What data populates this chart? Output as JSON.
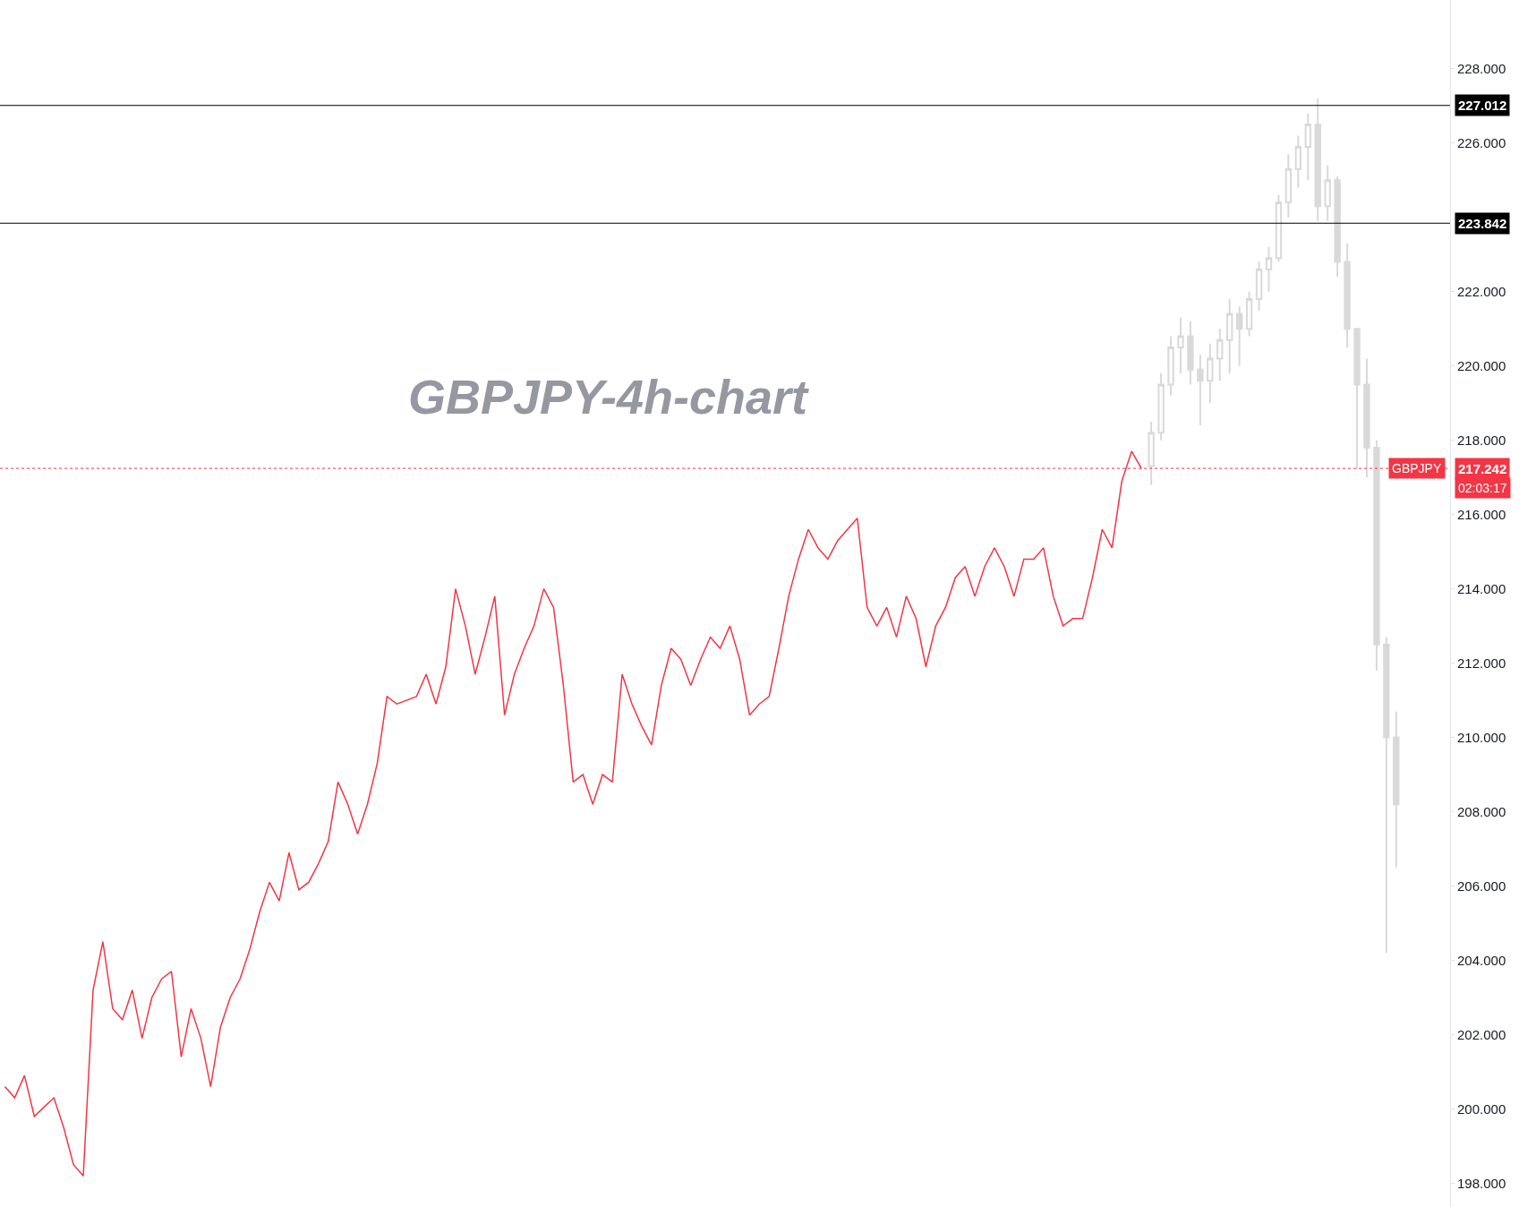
{
  "chart_data": {
    "type": "line",
    "title": "GBPJPY-4h-chart",
    "categories": [
      null,
      null,
      null,
      null,
      null,
      null,
      null,
      null,
      null,
      null,
      null,
      null,
      null,
      null,
      null,
      null,
      null,
      null,
      null,
      null,
      null,
      null,
      null,
      null,
      null,
      null,
      null,
      null,
      null,
      null,
      null,
      null,
      null,
      null,
      null,
      null,
      null,
      null,
      null,
      null,
      null,
      null,
      null,
      null,
      null,
      null,
      null,
      null,
      null,
      null,
      null,
      null,
      null,
      null,
      null,
      null,
      null,
      null,
      null,
      null,
      null,
      null,
      null,
      null,
      null,
      null,
      null,
      null,
      null,
      null,
      null,
      null,
      null,
      null,
      null,
      null,
      null,
      null,
      null,
      null,
      null,
      null,
      null,
      null,
      null,
      null,
      null,
      null,
      null,
      null,
      null,
      null,
      null,
      null,
      null,
      null,
      null,
      null,
      null,
      null,
      null,
      null,
      null,
      null,
      null,
      null,
      null,
      null,
      null,
      null,
      null,
      null,
      null,
      null,
      null,
      null,
      null,
      null,
      null,
      null,
      null,
      null,
      null,
      null,
      null,
      null,
      null,
      null,
      null,
      null,
      null,
      null,
      null,
      null,
      null,
      null,
      null,
      null,
      null,
      null,
      null,
      null,
      null,
      null,
      null,
      null,
      null,
      null
    ],
    "series": [
      {
        "color": "#f23645",
        "values": [
          200.6,
          200.3,
          200.9,
          199.8,
          200.05,
          200.3,
          199.5,
          198.5,
          198.2,
          203.2,
          204.5,
          202.7,
          202.4,
          203.2,
          201.9,
          203.0,
          203.5,
          203.7,
          201.4,
          202.7,
          201.9,
          200.6,
          202.2,
          203.0,
          203.5,
          204.3,
          205.3,
          206.1,
          205.6,
          206.9,
          205.9,
          206.1,
          206.6,
          207.2,
          208.8,
          208.2,
          207.4,
          208.2,
          209.3,
          211.1,
          210.9,
          211.0,
          211.1,
          211.7,
          210.9,
          211.9,
          214.0,
          213.0,
          211.7,
          212.7,
          213.8,
          210.6,
          211.7,
          212.4,
          213.0,
          214.0,
          213.5,
          211.4,
          208.8,
          209.0,
          208.2,
          209.0,
          208.8,
          211.7,
          210.9,
          210.3,
          209.8,
          211.4,
          212.4,
          212.1,
          211.4,
          212.1,
          212.7,
          212.4,
          213.0,
          212.1,
          210.6,
          210.9,
          211.1,
          212.4,
          213.8,
          214.8,
          215.6,
          215.1,
          214.8,
          215.3,
          215.6,
          215.9,
          213.5,
          213.0,
          213.5,
          212.7,
          213.8,
          213.2,
          211.9,
          213.0,
          213.5,
          214.3,
          214.6,
          213.8,
          214.6,
          215.1,
          214.6,
          213.8,
          214.8,
          214.8,
          215.1,
          213.8,
          213.0,
          213.2,
          213.2,
          214.3,
          215.6,
          215.1,
          216.9,
          217.7,
          217.24,
          null,
          null,
          null,
          null,
          null,
          null,
          null,
          null,
          null,
          null,
          null,
          null,
          null,
          null,
          null,
          null,
          null,
          null,
          null,
          null,
          null,
          null,
          null,
          null,
          null,
          null,
          null,
          null,
          null,
          null,
          null
        ]
      },
      {
        "type": "candlestick",
        "color": "#d9d9d9",
        "ohlc": [
          null,
          null,
          null,
          null,
          null,
          null,
          null,
          null,
          null,
          null,
          null,
          null,
          null,
          null,
          null,
          null,
          null,
          null,
          null,
          null,
          null,
          null,
          null,
          null,
          null,
          null,
          null,
          null,
          null,
          null,
          null,
          null,
          null,
          null,
          null,
          null,
          null,
          null,
          null,
          null,
          null,
          null,
          null,
          null,
          null,
          null,
          null,
          null,
          null,
          null,
          null,
          null,
          null,
          null,
          null,
          null,
          null,
          null,
          null,
          null,
          null,
          null,
          null,
          null,
          null,
          null,
          null,
          null,
          null,
          null,
          null,
          null,
          null,
          null,
          null,
          null,
          null,
          null,
          null,
          null,
          null,
          null,
          null,
          null,
          null,
          null,
          null,
          null,
          null,
          null,
          null,
          null,
          null,
          null,
          null,
          null,
          null,
          null,
          null,
          null,
          null,
          null,
          null,
          null,
          null,
          null,
          null,
          null,
          null,
          null,
          null,
          null,
          null,
          null,
          null,
          null,
          null,
          [
            217.3,
            218.5,
            216.8,
            218.2
          ],
          [
            218.2,
            219.8,
            218.0,
            219.5
          ],
          [
            219.5,
            220.8,
            219.2,
            220.5
          ],
          [
            220.5,
            221.3,
            219.8,
            220.8
          ],
          [
            220.8,
            221.2,
            219.5,
            219.9
          ],
          [
            219.9,
            220.3,
            218.4,
            219.6
          ],
          [
            219.6,
            220.6,
            219.0,
            220.2
          ],
          [
            220.2,
            221.0,
            219.6,
            220.7
          ],
          [
            220.7,
            221.8,
            219.8,
            221.4
          ],
          [
            221.4,
            221.6,
            220.0,
            221.0
          ],
          [
            221.0,
            222.0,
            220.8,
            221.8
          ],
          [
            221.8,
            222.8,
            221.5,
            222.6
          ],
          [
            222.6,
            223.2,
            222.0,
            222.9
          ],
          [
            222.9,
            224.6,
            222.8,
            224.4
          ],
          [
            224.4,
            225.7,
            224.0,
            225.3
          ],
          [
            225.3,
            226.2,
            224.8,
            225.9
          ],
          [
            225.9,
            226.8,
            225.0,
            226.5
          ],
          [
            226.5,
            227.2,
            223.9,
            224.3
          ],
          [
            224.3,
            225.4,
            223.9,
            225.0
          ],
          [
            225.0,
            225.1,
            222.4,
            222.8
          ],
          [
            222.8,
            223.3,
            220.5,
            221.0
          ],
          [
            221.0,
            221.0,
            217.2,
            219.5
          ],
          [
            219.5,
            220.2,
            217.0,
            217.8
          ],
          [
            217.8,
            218.0,
            211.8,
            212.5
          ],
          [
            212.5,
            212.7,
            204.2,
            210.0
          ],
          [
            210.0,
            210.7,
            206.5,
            208.2
          ],
          null,
          null,
          null,
          null,
          null
        ]
      }
    ],
    "ylim": [
      197.36,
      229.85
    ],
    "yticks": [
      {
        "value": 198,
        "label": "198.000"
      },
      {
        "value": 200,
        "label": "200.000"
      },
      {
        "value": 202,
        "label": "202.000"
      },
      {
        "value": 204,
        "label": "204.000"
      },
      {
        "value": 206,
        "label": "206.000"
      },
      {
        "value": 208,
        "label": "208.000"
      },
      {
        "value": 210,
        "label": "210.000"
      },
      {
        "value": 212,
        "label": "212.000"
      },
      {
        "value": 214,
        "label": "214.000"
      },
      {
        "value": 216,
        "label": "216.000"
      },
      {
        "value": 218,
        "label": "218.000"
      },
      {
        "value": 220,
        "label": "220.000"
      },
      {
        "value": 222,
        "label": "222.000"
      },
      {
        "value": 226,
        "label": "226.000"
      },
      {
        "value": 228,
        "label": "228.000"
      }
    ],
    "tick_labels": "y",
    "ref_lines": [
      {
        "axis": "y",
        "value": 227.012,
        "label": "227.012",
        "color": "#000000",
        "line_style": "solid"
      },
      {
        "axis": "y",
        "value": 223.842,
        "label": "223.842",
        "color": "#000000",
        "line_style": "solid"
      },
      {
        "axis": "y",
        "value": 217.242,
        "label": "217.242",
        "color": "#f23645",
        "line_style": "dotted"
      }
    ],
    "annotations": [
      "GBPJPY",
      "02:03:17"
    ]
  }
}
